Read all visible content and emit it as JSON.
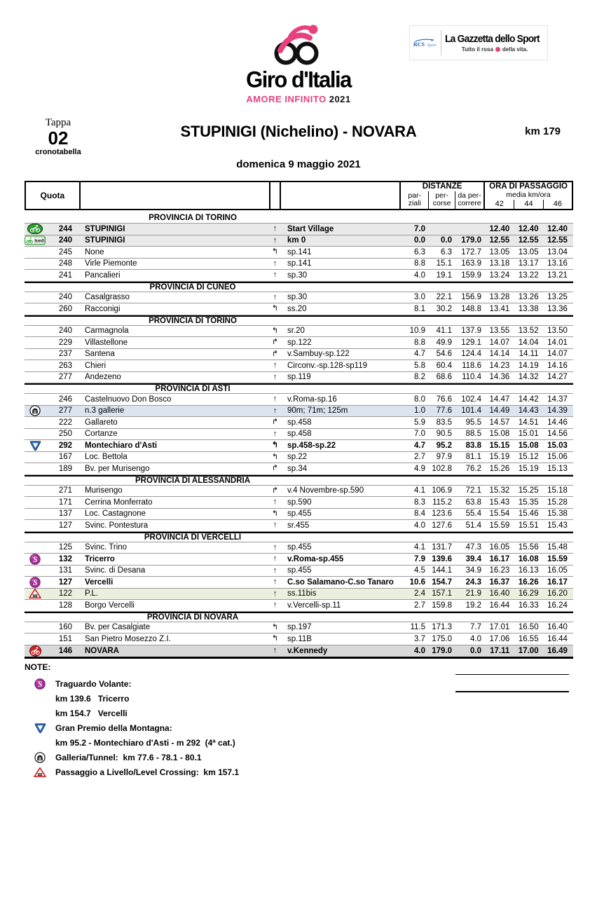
{
  "header": {
    "logo": {
      "title": "Giro d'Italia",
      "tagline": "AMORE INFINITO",
      "year": "2021"
    },
    "partners": {
      "rcs": "RCS",
      "rcs_sport": "Sport",
      "gazzetta": "La Gazzetta dello Sport",
      "gazzetta_sub_left": "Tutto il rosa",
      "gazzetta_sub_right": "della vita."
    },
    "stage": {
      "label": "Tappa",
      "number": "02",
      "sub": "cronotabella",
      "title": "STUPINIGI (Nichelino) - NOVARA",
      "distance": "km 179",
      "date": "domenica 9 maggio 2021"
    }
  },
  "colors": {
    "pink": "#e5417f",
    "rcs_blue": "#1d5fa8",
    "gpm_blue": "#2d6cb5",
    "sprint_purple": "#a8309a",
    "start_green": "#2f9e33",
    "finish_red": "#c9252c",
    "crossing_red": "#d42027",
    "row_gray_light": "#e9e9e9",
    "row_blue": "#dce4f0",
    "row_green": "#eaf0dd",
    "row_gray": "#d9d9d9"
  },
  "arrows": {
    "straight": "↑",
    "left": "↰",
    "right": "↱"
  },
  "table": {
    "headers": {
      "quota": "Quota",
      "distanze": "DISTANZE",
      "parziali_l1": "par-",
      "parziali_l2": "ziali",
      "percorse_l1": "per-",
      "percorse_l2": "corse",
      "dapercorrere_l1": "da per-",
      "dapercorrere_l2": "correre",
      "ora": "ORA DI PASSAGGIO",
      "media": "media km/ora",
      "speeds": [
        "42",
        "44",
        "46"
      ]
    },
    "rows": [
      {
        "type": "province",
        "label": "PROVINCIA DI TORINO"
      },
      {
        "type": "row",
        "icon": "start-village-icon",
        "quota": "244",
        "name": "STUPINIGI",
        "dir": "straight",
        "road": "Start Village",
        "parz": "7.0",
        "perc": "",
        "rest": "",
        "t42": "12.40",
        "t44": "12.40",
        "t46": "12.40",
        "bold": true,
        "bg": "row_gray_light"
      },
      {
        "type": "row",
        "icon": "km0-icon",
        "quota": "240",
        "name": "STUPINIGI",
        "dir": "straight",
        "road": "km 0",
        "parz": "0.0",
        "perc": "0.0",
        "rest": "179.0",
        "t42": "12.55",
        "t44": "12.55",
        "t46": "12.55",
        "bold": true,
        "bg": "row_gray_light"
      },
      {
        "type": "row",
        "icon": null,
        "quota": "245",
        "name": "None",
        "dir": "left",
        "road": "sp.141",
        "parz": "6.3",
        "perc": "6.3",
        "rest": "172.7",
        "t42": "13.05",
        "t44": "13.05",
        "t46": "13.04",
        "bold": false,
        "bg": null
      },
      {
        "type": "row",
        "icon": null,
        "quota": "248",
        "name": "Virle Piemonte",
        "dir": "straight",
        "road": "sp.141",
        "parz": "8.8",
        "perc": "15.1",
        "rest": "163.9",
        "t42": "13.18",
        "t44": "13.17",
        "t46": "13.16",
        "bold": false,
        "bg": null
      },
      {
        "type": "row",
        "icon": null,
        "quota": "241",
        "name": "Pancalieri",
        "dir": "straight",
        "road": "sp.30",
        "parz": "4.0",
        "perc": "19.1",
        "rest": "159.9",
        "t42": "13.24",
        "t44": "13.22",
        "t46": "13.21",
        "bold": false,
        "bg": null
      },
      {
        "type": "province",
        "label": "PROVINCIA DI CUNEO"
      },
      {
        "type": "row",
        "icon": null,
        "quota": "240",
        "name": "Casalgrasso",
        "dir": "straight",
        "road": "sp.30",
        "parz": "3.0",
        "perc": "22.1",
        "rest": "156.9",
        "t42": "13.28",
        "t44": "13.26",
        "t46": "13.25",
        "bold": false,
        "bg": null
      },
      {
        "type": "row",
        "icon": null,
        "quota": "260",
        "name": "Racconigi",
        "dir": "left",
        "road": "ss.20",
        "parz": "8.1",
        "perc": "30.2",
        "rest": "148.8",
        "t42": "13.41",
        "t44": "13.38",
        "t46": "13.36",
        "bold": false,
        "bg": null
      },
      {
        "type": "province",
        "label": "PROVINCIA DI TORINO"
      },
      {
        "type": "row",
        "icon": null,
        "quota": "240",
        "name": "Carmagnola",
        "dir": "left",
        "road": "sr.20",
        "parz": "10.9",
        "perc": "41.1",
        "rest": "137.9",
        "t42": "13.55",
        "t44": "13.52",
        "t46": "13.50",
        "bold": false,
        "bg": null
      },
      {
        "type": "row",
        "icon": null,
        "quota": "229",
        "name": "Villastellone",
        "dir": "right",
        "road": "sp.122",
        "parz": "8.8",
        "perc": "49.9",
        "rest": "129.1",
        "t42": "14.07",
        "t44": "14.04",
        "t46": "14.01",
        "bold": false,
        "bg": null
      },
      {
        "type": "row",
        "icon": null,
        "quota": "237",
        "name": "Santena",
        "dir": "right",
        "road": "v.Sambuy-sp.122",
        "parz": "4.7",
        "perc": "54.6",
        "rest": "124.4",
        "t42": "14.14",
        "t44": "14.11",
        "t46": "14.07",
        "bold": false,
        "bg": null
      },
      {
        "type": "row",
        "icon": null,
        "quota": "263",
        "name": "Chieri",
        "dir": "straight",
        "road": "Circonv.-sp.128-sp119",
        "parz": "5.8",
        "perc": "60.4",
        "rest": "118.6",
        "t42": "14.23",
        "t44": "14.19",
        "t46": "14.16",
        "bold": false,
        "bg": null
      },
      {
        "type": "row",
        "icon": null,
        "quota": "277",
        "name": "Andezeno",
        "dir": "straight",
        "road": "sp.119",
        "parz": "8.2",
        "perc": "68.6",
        "rest": "110.4",
        "t42": "14.36",
        "t44": "14.32",
        "t46": "14.27",
        "bold": false,
        "bg": null
      },
      {
        "type": "province",
        "label": "PROVINCIA DI ASTI"
      },
      {
        "type": "row",
        "icon": null,
        "quota": "246",
        "name": "Castelnuovo Don Bosco",
        "dir": "straight",
        "road": "v.Roma-sp.16",
        "parz": "8.0",
        "perc": "76.6",
        "rest": "102.4",
        "t42": "14.47",
        "t44": "14.42",
        "t46": "14.37",
        "bold": false,
        "bg": null
      },
      {
        "type": "row",
        "icon": "tunnel-icon",
        "quota": "277",
        "name": "n.3 gallerie",
        "dir": "straight",
        "road": "90m; 71m; 125m",
        "parz": "1.0",
        "perc": "77.6",
        "rest": "101.4",
        "t42": "14.49",
        "t44": "14.43",
        "t46": "14.39",
        "bold": false,
        "bg": "row_blue"
      },
      {
        "type": "row",
        "icon": null,
        "quota": "222",
        "name": "Gallareto",
        "dir": "right",
        "road": "sp.458",
        "parz": "5.9",
        "perc": "83.5",
        "rest": "95.5",
        "t42": "14.57",
        "t44": "14.51",
        "t46": "14.46",
        "bold": false,
        "bg": null
      },
      {
        "type": "row",
        "icon": null,
        "quota": "250",
        "name": "Cortanze",
        "dir": "straight",
        "road": "sp.458",
        "parz": "7.0",
        "perc": "90.5",
        "rest": "88.5",
        "t42": "15.08",
        "t44": "15.01",
        "t46": "14.56",
        "bold": false,
        "bg": null
      },
      {
        "type": "row",
        "icon": "gpm-icon",
        "quota": "292",
        "name": "Montechiaro d'Asti",
        "dir": "left",
        "road": "sp.458-sp.22",
        "parz": "4.7",
        "perc": "95.2",
        "rest": "83.8",
        "t42": "15.15",
        "t44": "15.08",
        "t46": "15.03",
        "bold": true,
        "bg": null
      },
      {
        "type": "row",
        "icon": null,
        "quota": "167",
        "name": "Loc. Bettola",
        "dir": "left",
        "road": "sp.22",
        "parz": "2.7",
        "perc": "97.9",
        "rest": "81.1",
        "t42": "15.19",
        "t44": "15.12",
        "t46": "15.06",
        "bold": false,
        "bg": null
      },
      {
        "type": "row",
        "icon": null,
        "quota": "189",
        "name": "Bv. per Murisengo",
        "dir": "right",
        "road": "sp.34",
        "parz": "4.9",
        "perc": "102.8",
        "rest": "76.2",
        "t42": "15.26",
        "t44": "15.19",
        "t46": "15.13",
        "bold": false,
        "bg": null
      },
      {
        "type": "province",
        "label": "PROVINCIA DI ALESSANDRIA"
      },
      {
        "type": "row",
        "icon": null,
        "quota": "271",
        "name": "Murisengo",
        "dir": "right",
        "road": "v.4 Novembre-sp.590",
        "parz": "4.1",
        "perc": "106.9",
        "rest": "72.1",
        "t42": "15.32",
        "t44": "15.25",
        "t46": "15.18",
        "bold": false,
        "bg": null
      },
      {
        "type": "row",
        "icon": null,
        "quota": "171",
        "name": "Cerrina Monferrato",
        "dir": "straight",
        "road": "sp.590",
        "parz": "8.3",
        "perc": "115.2",
        "rest": "63.8",
        "t42": "15.43",
        "t44": "15.35",
        "t46": "15.28",
        "bold": false,
        "bg": null
      },
      {
        "type": "row",
        "icon": null,
        "quota": "137",
        "name": "Loc. Castagnone",
        "dir": "left",
        "road": "sp.455",
        "parz": "8.4",
        "perc": "123.6",
        "rest": "55.4",
        "t42": "15.54",
        "t44": "15.46",
        "t46": "15.38",
        "bold": false,
        "bg": null
      },
      {
        "type": "row",
        "icon": null,
        "quota": "127",
        "name": "Svinc. Pontestura",
        "dir": "straight",
        "road": "sr.455",
        "parz": "4.0",
        "perc": "127.6",
        "rest": "51.4",
        "t42": "15.59",
        "t44": "15.51",
        "t46": "15.43",
        "bold": false,
        "bg": null
      },
      {
        "type": "province",
        "label": "PROVINCIA DI VERCELLI"
      },
      {
        "type": "row",
        "icon": null,
        "quota": "125",
        "name": "Svinc. Trino",
        "dir": "straight",
        "road": "sp.455",
        "parz": "4.1",
        "perc": "131.7",
        "rest": "47.3",
        "t42": "16.05",
        "t44": "15.56",
        "t46": "15.48",
        "bold": false,
        "bg": null
      },
      {
        "type": "row",
        "icon": "sprint-icon",
        "quota": "132",
        "name": "Tricerro",
        "dir": "straight",
        "road": "v.Roma-sp.455",
        "parz": "7.9",
        "perc": "139.6",
        "rest": "39.4",
        "t42": "16.17",
        "t44": "16.08",
        "t46": "15.59",
        "bold": true,
        "bg": null
      },
      {
        "type": "row",
        "icon": null,
        "quota": "131",
        "name": "Svinc. di Desana",
        "dir": "straight",
        "road": "sp.455",
        "parz": "4.5",
        "perc": "144.1",
        "rest": "34.9",
        "t42": "16.23",
        "t44": "16.13",
        "t46": "16.05",
        "bold": false,
        "bg": null
      },
      {
        "type": "row",
        "icon": "sprint-icon",
        "quota": "127",
        "name": "Vercelli",
        "dir": "straight",
        "road": "C.so Salamano-C.so Tanaro",
        "parz": "10.6",
        "perc": "154.7",
        "rest": "24.3",
        "t42": "16.37",
        "t44": "16.26",
        "t46": "16.17",
        "bold": true,
        "bg": null
      },
      {
        "type": "row",
        "icon": "crossing-icon",
        "quota": "122",
        "name": "P.L.",
        "dir": "straight",
        "road": "ss.11bis",
        "parz": "2.4",
        "perc": "157.1",
        "rest": "21.9",
        "t42": "16.40",
        "t44": "16.29",
        "t46": "16.20",
        "bold": false,
        "bg": "row_green"
      },
      {
        "type": "row",
        "icon": null,
        "quota": "128",
        "name": "Borgo Vercelli",
        "dir": "straight",
        "road": "v.Vercelli-sp.11",
        "parz": "2.7",
        "perc": "159.8",
        "rest": "19.2",
        "t42": "16.44",
        "t44": "16.33",
        "t46": "16.24",
        "bold": false,
        "bg": null
      },
      {
        "type": "province",
        "label": "PROVINCIA DI NOVARA"
      },
      {
        "type": "row",
        "icon": null,
        "quota": "160",
        "name": "Bv. per Casalgiate",
        "dir": "left",
        "road": "sp.197",
        "parz": "11.5",
        "perc": "171.3",
        "rest": "7.7",
        "t42": "17.01",
        "t44": "16.50",
        "t46": "16.40",
        "bold": false,
        "bg": null
      },
      {
        "type": "row",
        "icon": null,
        "quota": "151",
        "name": "San Pietro Mosezzo Z.I.",
        "dir": "left",
        "road": "sp.11B",
        "parz": "3.7",
        "perc": "175.0",
        "rest": "4.0",
        "t42": "17.06",
        "t44": "16.55",
        "t46": "16.44",
        "bold": false,
        "bg": null
      },
      {
        "type": "row",
        "icon": "finish-icon",
        "quota": "146",
        "name": "NOVARA",
        "dir": "straight",
        "road": "v.Kennedy",
        "parz": "4.0",
        "perc": "179.0",
        "rest": "0.0",
        "t42": "17.11",
        "t44": "17.00",
        "t46": "16.49",
        "bold": true,
        "bg": "row_gray"
      }
    ]
  },
  "notes": {
    "title": "NOTE:",
    "items": [
      {
        "icon": "sprint-icon",
        "text": "Traguardo Volante:"
      },
      {
        "icon": null,
        "text": "km 139.6   Tricerro"
      },
      {
        "icon": null,
        "text": "km 154.7   Vercelli"
      },
      {
        "icon": "gpm-icon",
        "text": "Gran Premio della Montagna:"
      },
      {
        "icon": null,
        "text": "km 95.2 - Montechiaro d'Asti - m 292  (4ª cat.)"
      },
      {
        "icon": "tunnel-icon",
        "text": "Galleria/Tunnel:  km 77.6 - 78.1 - 80.1"
      },
      {
        "icon": "crossing-icon",
        "text": "Passaggio a Livello/Level Crossing:  km 157.1"
      }
    ]
  }
}
